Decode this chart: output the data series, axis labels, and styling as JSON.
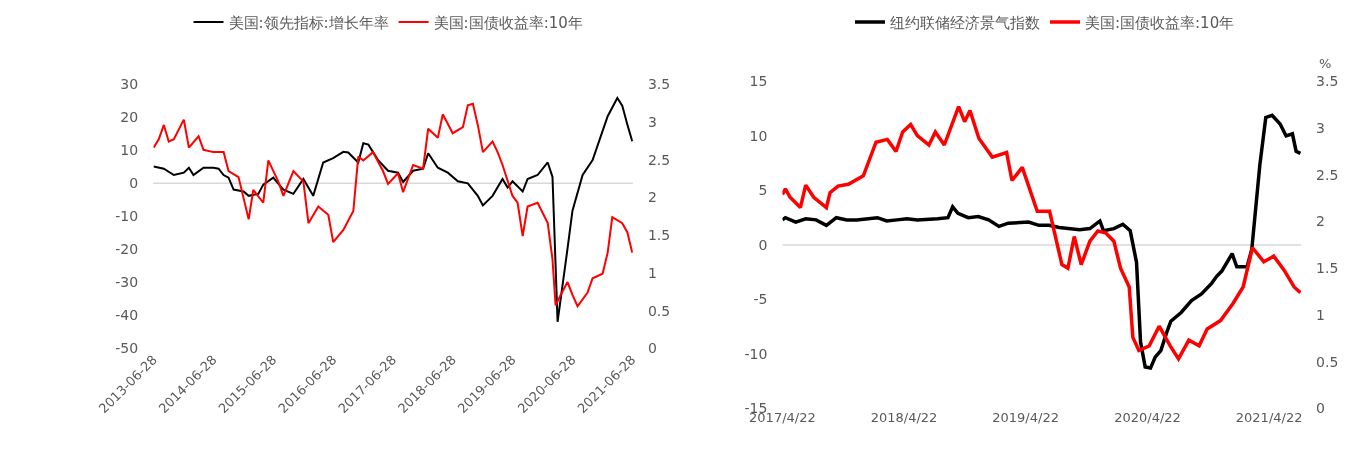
{
  "chart_data": [
    {
      "type": "line",
      "legend": "top",
      "xlim": [
        "2013-06-28",
        "2021-07-05"
      ],
      "xticks": [
        "2013-06-28",
        "2014-06-28",
        "2015-06-28",
        "2016-06-28",
        "2017-06-28",
        "2018-06-28",
        "2019-06-28",
        "2020-06-28",
        "2021-06-28"
      ],
      "ylim": [
        -50,
        30
      ],
      "yticks": [
        -50,
        -40,
        -30,
        -20,
        -10,
        0,
        10,
        20,
        30
      ],
      "y2lim": [
        0,
        3.5
      ],
      "y2ticks": [
        0,
        0.5,
        1,
        1.5,
        2,
        2.5,
        3,
        3.5
      ],
      "ref_lines": [
        {
          "axis": "y",
          "value": 0,
          "color": "#d9d9d9"
        }
      ],
      "series": [
        {
          "name": "美国:领先指标:增长年率",
          "color": "#000000",
          "x": [
            "2013-07",
            "2013-09",
            "2013-11",
            "2014-01",
            "2014-02",
            "2014-03",
            "2014-05",
            "2014-07",
            "2014-08",
            "2014-09",
            "2014-10",
            "2014-11",
            "2015-01",
            "2015-02",
            "2015-04",
            "2015-05",
            "2015-07",
            "2015-09",
            "2015-11",
            "2016-01",
            "2016-03",
            "2016-05",
            "2016-07",
            "2016-09",
            "2016-10",
            "2016-12",
            "2017-01",
            "2017-02",
            "2017-04",
            "2017-06",
            "2017-08",
            "2017-09",
            "2017-11",
            "2018-01",
            "2018-02",
            "2018-04",
            "2018-06",
            "2018-08",
            "2018-10",
            "2018-12",
            "2019-01",
            "2019-03",
            "2019-05",
            "2019-06",
            "2019-07",
            "2019-09",
            "2019-10",
            "2019-12",
            "2020-02",
            "2020-03",
            "2020-04",
            "2020-06",
            "2020-07",
            "2020-09",
            "2020-11",
            "2021-02",
            "2021-04",
            "2021-05",
            "2021-06",
            "2021-07"
          ],
          "values": [
            5.1,
            4.4,
            2.5,
            3.2,
            4.7,
            2.5,
            4.7,
            4.7,
            4.4,
            2.5,
            1.7,
            -1.9,
            -2.5,
            -3.8,
            -3.2,
            -0.4,
            1.7,
            -1.9,
            -3.2,
            1.3,
            -3.8,
            6.3,
            7.6,
            9.5,
            9.3,
            6.3,
            12.1,
            11.7,
            7.0,
            3.8,
            3.2,
            0.4,
            3.8,
            4.4,
            9.1,
            4.7,
            3.2,
            0.6,
            0,
            -3.8,
            -6.7,
            -3.8,
            1.3,
            -1.3,
            0.6,
            -2.5,
            1.3,
            2.5,
            6.3,
            1.9,
            -41.9,
            -19.7,
            -8.3,
            2.5,
            7.0,
            20.3,
            25.8,
            23.5,
            17.8,
            12.7
          ]
        },
        {
          "name": "美国:国债收益率:10年",
          "color": "#ff0000",
          "axis": "y2",
          "x": [
            "2013-07",
            "2013-08",
            "2013-09",
            "2013-10",
            "2013-11",
            "2014-01",
            "2014-02",
            "2014-04",
            "2014-05",
            "2014-07",
            "2014-09",
            "2014-10",
            "2014-12",
            "2015-02",
            "2015-03",
            "2015-05",
            "2015-06",
            "2015-08",
            "2015-09",
            "2015-11",
            "2016-01",
            "2016-02",
            "2016-04",
            "2016-06",
            "2016-07",
            "2016-09",
            "2016-11",
            "2016-12",
            "2017-01",
            "2017-03",
            "2017-05",
            "2017-06",
            "2017-08",
            "2017-09",
            "2017-11",
            "2018-01",
            "2018-02",
            "2018-04",
            "2018-05",
            "2018-07",
            "2018-09",
            "2018-10",
            "2018-11",
            "2018-12",
            "2019-01",
            "2019-03",
            "2019-04",
            "2019-05",
            "2019-07",
            "2019-08",
            "2019-09",
            "2019-10",
            "2019-12",
            "2020-02",
            "2020-03-01",
            "2020-03-20",
            "2020-04-20",
            "2020-06",
            "2020-07",
            "2020-08",
            "2020-10",
            "2020-11",
            "2021-01",
            "2021-02",
            "2021-03",
            "2021-05",
            "2021-06",
            "2021-07"
          ],
          "values": [
            2.66,
            2.77,
            2.96,
            2.74,
            2.77,
            3.03,
            2.66,
            2.81,
            2.63,
            2.6,
            2.6,
            2.35,
            2.27,
            1.71,
            2.1,
            1.93,
            2.49,
            2.21,
            2.02,
            2.35,
            2.21,
            1.66,
            1.88,
            1.77,
            1.41,
            1.57,
            1.82,
            2.54,
            2.49,
            2.6,
            2.35,
            2.18,
            2.32,
            2.07,
            2.43,
            2.38,
            2.91,
            2.79,
            3.1,
            2.85,
            2.93,
            3.22,
            3.24,
            2.96,
            2.6,
            2.74,
            2.6,
            2.43,
            2.02,
            1.93,
            1.49,
            1.88,
            1.93,
            1.66,
            1.18,
            0.57,
            0.71,
            0.88,
            0.71,
            0.56,
            0.74,
            0.93,
            0.99,
            1.27,
            1.74,
            1.66,
            1.54,
            1.27
          ]
        }
      ]
    },
    {
      "type": "line",
      "legend": "top",
      "xlim": [
        "2017-04-22",
        "2021-07-27"
      ],
      "xticks": [
        {
          "value": "2017-04-22",
          "label": "2017/4/22"
        },
        {
          "value": "2018-04-22",
          "label": "2018/4/22"
        },
        {
          "value": "2019-04-22",
          "label": "2019/4/22"
        },
        {
          "value": "2020-04-22",
          "label": "2020/4/22"
        },
        {
          "value": "2021-04-22",
          "label": "2021/4/22"
        }
      ],
      "ylim": [
        -15,
        15
      ],
      "yticks": [
        -15,
        -10,
        -5,
        0,
        5,
        10,
        15
      ],
      "y2lim": [
        0,
        3.5
      ],
      "y2ticks": [
        0,
        0.5,
        1,
        1.5,
        2,
        2.5,
        3,
        3.5
      ],
      "y2label": "%",
      "ref_lines": [
        {
          "axis": "y",
          "value": 0,
          "color": "#d9d9d9"
        }
      ],
      "series": [
        {
          "name": "纽约联储经济景气指数",
          "color": "#000000",
          "x": [
            "2017-04-22",
            "2017-05",
            "2017-06",
            "2017-07",
            "2017-08",
            "2017-09",
            "2017-10",
            "2017-11",
            "2017-12",
            "2018-02",
            "2018-03",
            "2018-04",
            "2018-05",
            "2018-06",
            "2018-08",
            "2018-09-01",
            "2018-09-15",
            "2018-10",
            "2018-11",
            "2018-12",
            "2019-01",
            "2019-02",
            "2019-03",
            "2019-05",
            "2019-06",
            "2019-07",
            "2019-08",
            "2019-10",
            "2019-11",
            "2019-12",
            "2019-12-12",
            "2020-01-12",
            "2020-02-08",
            "2020-03",
            "2020-03-20",
            "2020-04",
            "2020-04-15",
            "2020-05",
            "2020-05-15",
            "2020-06",
            "2020-06-20",
            "2020-07",
            "2020-08",
            "2020-09",
            "2020-10",
            "2020-11",
            "2020-11-15",
            "2020-12",
            "2021-01",
            "2021-01-15",
            "2021-02-15",
            "2021-03",
            "2021-03-25",
            "2021-04-12",
            "2021-05",
            "2021-05-25",
            "2021-06-12",
            "2021-07",
            "2021-07-12",
            "2021-07-25"
          ],
          "values": [
            2.3,
            2.5,
            2.1,
            2.4,
            2.3,
            1.8,
            2.5,
            2.3,
            2.3,
            2.5,
            2.2,
            2.3,
            2.4,
            2.3,
            2.4,
            2.5,
            3.5,
            2.9,
            2.5,
            2.6,
            2.3,
            1.7,
            2.0,
            2.1,
            1.8,
            1.8,
            1.6,
            1.4,
            1.5,
            2.2,
            1.3,
            1.5,
            1.9,
            1.3,
            -1.6,
            -8.9,
            -11.2,
            -11.3,
            -10.3,
            -9.7,
            -7.9,
            -7.0,
            -6.2,
            -5.1,
            -4.5,
            -3.5,
            -2.9,
            -2.4,
            -0.8,
            -2.0,
            -2.0,
            -0.4,
            7.3,
            11.7,
            11.9,
            11.1,
            10.0,
            10.2,
            8.6,
            8.4
          ]
        },
        {
          "name": "美国:国债收益率:10年",
          "color": "#ff0000",
          "axis": "y2",
          "x": [
            "2017-04-22",
            "2017-05",
            "2017-05-15",
            "2017-06-15",
            "2017-07",
            "2017-07-25",
            "2017-09",
            "2017-09-12",
            "2017-10-06",
            "2017-11-06",
            "2017-12-21",
            "2018-01-28",
            "2018-03-03",
            "2018-03-29",
            "2018-04-18",
            "2018-05-12",
            "2018-06-01",
            "2018-07-06",
            "2018-07-25",
            "2018-08-21",
            "2018-10-03",
            "2018-10-21",
            "2018-11-06",
            "2018-12-03",
            "2019-01-12",
            "2019-02-24",
            "2019-03-12",
            "2019-04-12",
            "2019-05-27",
            "2019-07-03",
            "2019-08-09",
            "2019-08-27",
            "2019-09-15",
            "2019-10-06",
            "2019-11-01",
            "2019-11-25",
            "2019-12-18",
            "2020-01-12",
            "2020-02-01",
            "2020-02-27",
            "2020-03-09",
            "2020-03-27",
            "2020-04-27",
            "2020-05-27",
            "2020-06-29",
            "2020-07-24",
            "2020-08-24",
            "2020-09-24",
            "2020-10-18",
            "2020-11-27",
            "2021-01-03",
            "2021-02-03",
            "2021-03-03",
            "2021-04-06",
            "2021-05-06",
            "2021-06-06",
            "2021-07-06",
            "2021-07-25"
          ],
          "values": [
            2.29,
            2.35,
            2.26,
            2.15,
            2.39,
            2.26,
            2.15,
            2.31,
            2.38,
            2.4,
            2.49,
            2.85,
            2.88,
            2.75,
            2.96,
            3.04,
            2.92,
            2.82,
            2.96,
            2.82,
            3.23,
            3.07,
            3.19,
            2.89,
            2.69,
            2.74,
            2.44,
            2.58,
            2.11,
            2.11,
            1.54,
            1.5,
            1.84,
            1.54,
            1.79,
            1.9,
            1.88,
            1.79,
            1.5,
            1.3,
            0.76,
            0.62,
            0.67,
            0.88,
            0.67,
            0.53,
            0.73,
            0.67,
            0.85,
            0.94,
            1.12,
            1.3,
            1.72,
            1.57,
            1.63,
            1.48,
            1.3,
            1.24
          ]
        }
      ]
    }
  ]
}
